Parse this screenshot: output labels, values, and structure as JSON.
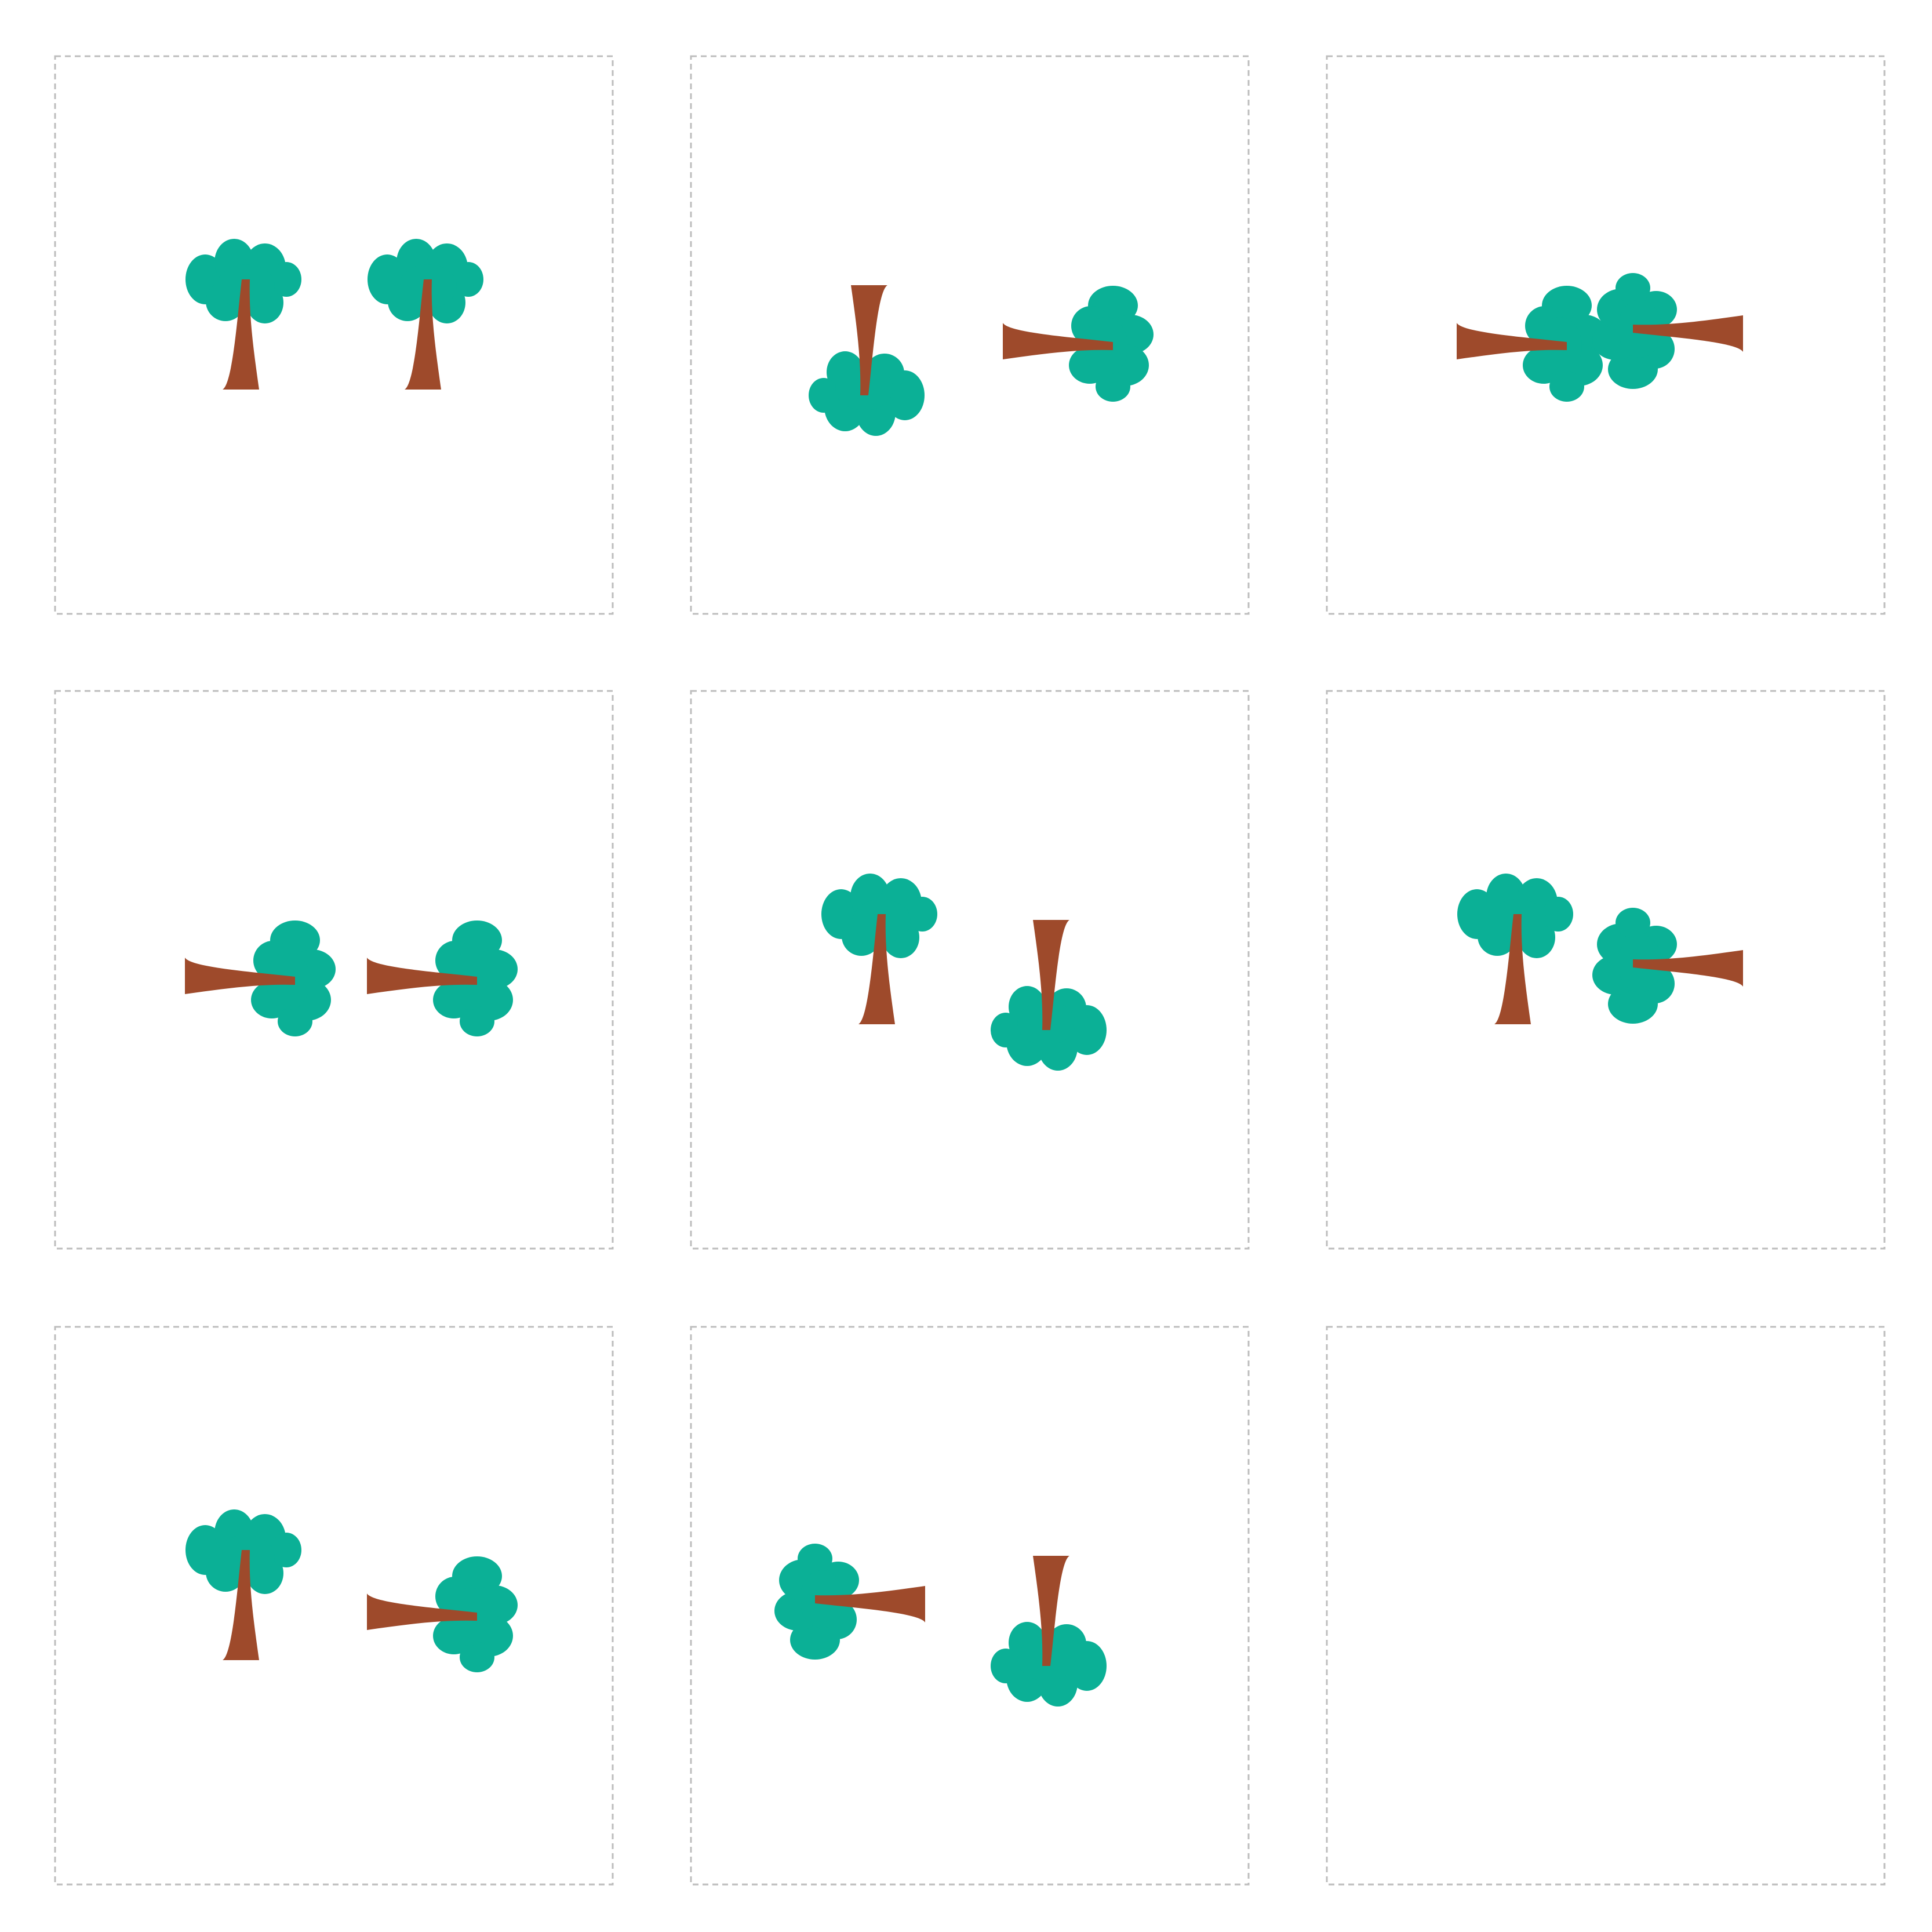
{
  "puzzle": {
    "rows": 3,
    "columns": 3,
    "colors": {
      "foliage": "#0BB096",
      "trunk": "#9E4A2B",
      "tile_border": "#BDBDBD",
      "background": "#FFFFFF"
    },
    "panels": [
      {
        "row": 1,
        "column": 1,
        "trees": [
          {
            "orientation": "upright"
          },
          {
            "orientation": "upright"
          }
        ]
      },
      {
        "row": 1,
        "column": 2,
        "trees": [
          {
            "orientation": "upside-down"
          },
          {
            "orientation": "rotated-left"
          }
        ]
      },
      {
        "row": 1,
        "column": 3,
        "trees": [
          {
            "orientation": "rotated-left"
          },
          {
            "orientation": "rotated-right"
          }
        ]
      },
      {
        "row": 2,
        "column": 1,
        "trees": [
          {
            "orientation": "rotated-left"
          },
          {
            "orientation": "rotated-left"
          }
        ]
      },
      {
        "row": 2,
        "column": 2,
        "trees": [
          {
            "orientation": "upright"
          },
          {
            "orientation": "upside-down"
          }
        ]
      },
      {
        "row": 2,
        "column": 3,
        "trees": [
          {
            "orientation": "upright"
          },
          {
            "orientation": "rotated-right"
          }
        ]
      },
      {
        "row": 3,
        "column": 1,
        "trees": [
          {
            "orientation": "upright"
          },
          {
            "orientation": "rotated-left"
          }
        ]
      },
      {
        "row": 3,
        "column": 2,
        "trees": [
          {
            "orientation": "rotated-right"
          },
          {
            "orientation": "upside-down"
          }
        ]
      },
      {
        "row": 3,
        "column": 3,
        "trees": []
      }
    ]
  }
}
